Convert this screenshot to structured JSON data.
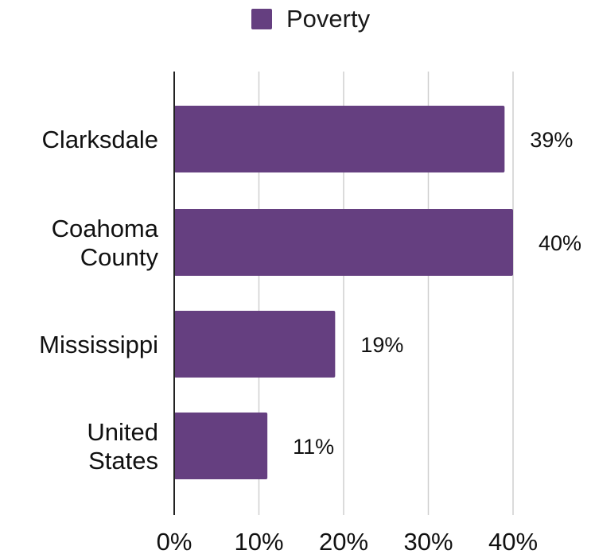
{
  "chart_data": {
    "type": "bar",
    "orientation": "horizontal",
    "categories": [
      [
        "Clarksdale"
      ],
      [
        "Coahoma",
        "County"
      ],
      [
        "Mississippi"
      ],
      [
        "United",
        "States"
      ]
    ],
    "series": [
      {
        "name": "Poverty",
        "values": [
          39,
          40,
          19,
          11
        ],
        "color": "#653f80"
      }
    ],
    "data_labels": [
      "39%",
      "40%",
      "19%",
      "11%"
    ],
    "xlim": [
      0,
      40
    ],
    "x_ticks": [
      0,
      10,
      20,
      30,
      40
    ],
    "x_tick_labels": [
      "0%",
      "10%",
      "20%",
      "30%",
      "40%"
    ],
    "grid": true,
    "legend": {
      "position": "top-center",
      "label": "Poverty"
    },
    "title": "",
    "xlabel": "",
    "ylabel": ""
  }
}
